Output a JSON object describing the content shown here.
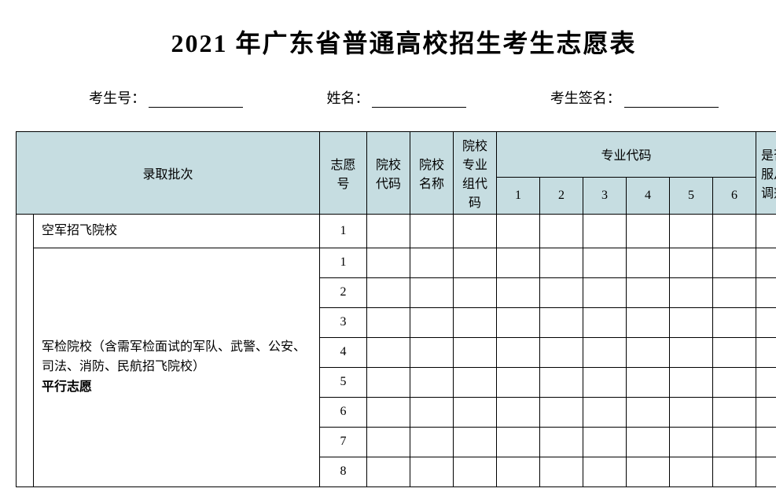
{
  "title": "2021 年广东省普通高校招生考生志愿表",
  "info": {
    "examNumLabel": "考生号：",
    "nameLabel": "姓名：",
    "signLabel": "考生签名："
  },
  "headers": {
    "batch": "录取批次",
    "choiceNum": "志愿号",
    "schoolCode": "院校代码",
    "schoolName": "院校名称",
    "groupCode": "院校专业组代码",
    "majorCode": "专业代码",
    "majors": [
      "1",
      "2",
      "3",
      "4",
      "5",
      "6"
    ],
    "adjust": "是否服从调剂"
  },
  "batches": {
    "row1": {
      "name": "空军招飞院校",
      "choiceNums": [
        "1"
      ]
    },
    "row2": {
      "name": "军检院校（含需军检面试的军队、武警、公安、司法、消防、民航招飞院校）",
      "boldPart": "平行志愿",
      "choiceNums": [
        "1",
        "2",
        "3",
        "4",
        "5",
        "6",
        "7",
        "8"
      ]
    }
  },
  "colors": {
    "headerBg": "#c6dde1",
    "border": "#000000",
    "background": "#ffffff",
    "text": "#000000"
  }
}
